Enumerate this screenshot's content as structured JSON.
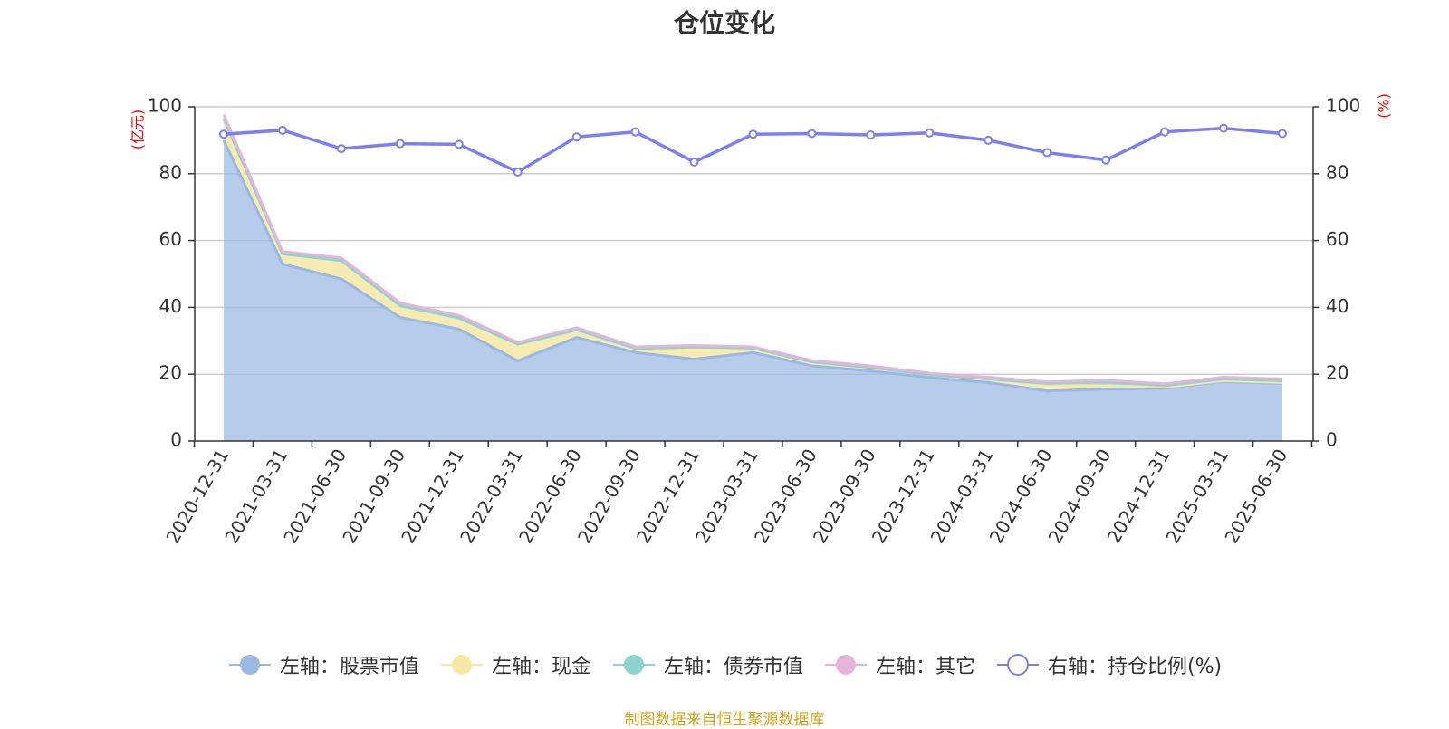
{
  "title": "仓位变化",
  "source_note": "制图数据来自恒生聚源数据库",
  "colors": {
    "stock": "#9ab8e2",
    "cash": "#f7e7a5",
    "bond": "#8fd3d0",
    "other": "#e6b3da",
    "ratio": "#7b7ff0",
    "grid": "#cccccc",
    "axis": "#333333",
    "unit": "#ff0000"
  },
  "legend": [
    {
      "label": "左轴：股票市值",
      "icon": "filled-circle",
      "color": "#9ab8e2"
    },
    {
      "label": "左轴：现金",
      "icon": "filled-circle",
      "color": "#f7e7a5"
    },
    {
      "label": "左轴：债券市值",
      "icon": "filled-circle",
      "color": "#8fd3d0"
    },
    {
      "label": "左轴：其它",
      "icon": "filled-circle",
      "color": "#e6b3da"
    },
    {
      "label": "右轴：持仓比例(%)",
      "icon": "hollow-circle",
      "color": "#7b7ff0"
    }
  ],
  "chart_data": {
    "type": "area",
    "title": "仓位变化",
    "categories": [
      "2020-12-31",
      "2021-03-31",
      "2021-06-30",
      "2021-09-30",
      "2021-12-31",
      "2022-03-31",
      "2022-06-30",
      "2022-09-30",
      "2022-12-31",
      "2023-03-31",
      "2023-06-30",
      "2023-09-30",
      "2023-12-31",
      "2024-03-31",
      "2024-06-30",
      "2024-09-30",
      "2024-12-31",
      "2025-03-31",
      "2025-06-30"
    ],
    "left_axis": {
      "unit": "(亿元)",
      "ylim": [
        0,
        100
      ],
      "ticks": [
        0,
        20,
        40,
        60,
        80,
        100
      ]
    },
    "right_axis": {
      "unit": "(%)",
      "ylim": [
        0,
        100
      ],
      "ticks": [
        0,
        20,
        40,
        60,
        80,
        100
      ]
    },
    "grid": true,
    "legend_position": "bottom",
    "series": [
      {
        "name": "左轴：股票市值",
        "axis": "left",
        "kind": "stacked-area",
        "values": [
          90,
          53,
          48.5,
          37,
          33.5,
          24,
          31,
          26.5,
          24.5,
          26.5,
          22.5,
          21,
          19,
          17.5,
          15,
          15.5,
          15.8,
          17.8,
          17.2
        ]
      },
      {
        "name": "左轴：现金",
        "axis": "left",
        "kind": "stacked-area",
        "values": [
          6.5,
          3,
          5.5,
          3.5,
          3.3,
          5,
          2.3,
          1.2,
          3.6,
          1.3,
          1.2,
          1.0,
          0.8,
          1.1,
          1.7,
          1.0,
          0.3,
          0.3,
          0.3
        ]
      },
      {
        "name": "左轴：债券市值",
        "axis": "left",
        "kind": "stacked-area",
        "values": [
          0,
          0,
          0,
          0,
          0,
          0,
          0,
          0,
          0,
          0,
          0,
          0,
          0,
          0,
          0.5,
          1.2,
          0.5,
          0.5,
          0.5
        ]
      },
      {
        "name": "左轴：其它",
        "axis": "left",
        "kind": "stacked-area",
        "values": [
          1.2,
          0.7,
          0.8,
          0.8,
          0.8,
          0.5,
          0.6,
          0.5,
          0.5,
          0.4,
          0.4,
          0.5,
          0.5,
          0.5,
          0.5,
          0.5,
          0.5,
          0.5,
          0.6
        ]
      },
      {
        "name": "右轴：持仓比例(%)",
        "axis": "right",
        "kind": "line",
        "values": [
          91.8,
          93,
          87.5,
          89,
          88.8,
          80.5,
          91,
          92.5,
          83.5,
          91.8,
          92,
          91.6,
          92.2,
          90,
          86.3,
          84.1,
          92.5,
          93.6,
          92
        ]
      }
    ]
  }
}
